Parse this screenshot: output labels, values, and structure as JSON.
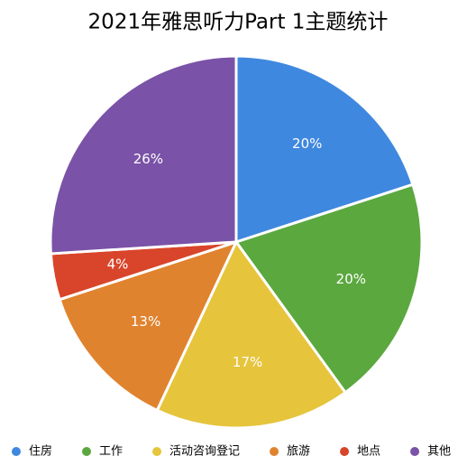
{
  "chart_data": {
    "type": "pie",
    "title": "2021年雅思听力Part 1主题统计",
    "categories": [
      "住房",
      "工作",
      "活动咨询登记",
      "旅游",
      "地点",
      "其他"
    ],
    "values": [
      20,
      20,
      17,
      13,
      4,
      26
    ],
    "value_labels": [
      "20%",
      "20%",
      "17%",
      "13%",
      "4%",
      "26%"
    ],
    "colors": [
      "#3f88df",
      "#5ba83f",
      "#e6c43c",
      "#e0832f",
      "#d8452a",
      "#7a52a7"
    ],
    "legend": "bottom"
  }
}
